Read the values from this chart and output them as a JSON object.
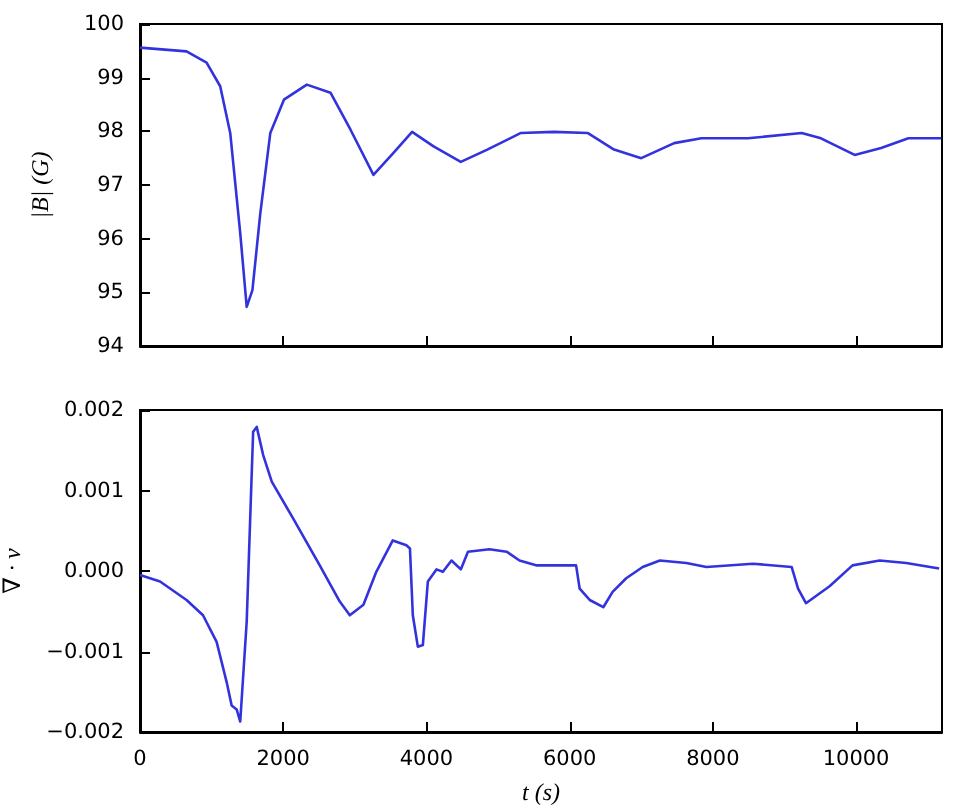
{
  "chart_data": [
    {
      "type": "line",
      "ylabel": "|B| (G)",
      "x": [
        0,
        650,
        930,
        1120,
        1260,
        1400,
        1490,
        1570,
        1680,
        1820,
        2010,
        2330,
        2660,
        2940,
        3260,
        3540,
        3800,
        4100,
        4480,
        4850,
        5320,
        5780,
        6250,
        6620,
        7000,
        7460,
        7840,
        8490,
        9240,
        9510,
        9980,
        10350,
        10730,
        11190
      ],
      "series": [
        {
          "color": "#3333dd",
          "values": [
            99.56,
            99.49,
            99.28,
            98.84,
            97.97,
            96.1,
            94.73,
            95.04,
            96.47,
            97.97,
            98.59,
            98.87,
            98.72,
            98.03,
            97.19,
            97.6,
            97.99,
            97.72,
            97.43,
            97.66,
            97.97,
            97.99,
            97.97,
            97.66,
            97.5,
            97.78,
            97.87,
            97.87,
            97.97,
            97.87,
            97.56,
            97.69,
            97.87,
            97.87
          ]
        }
      ],
      "xlim": [
        0,
        11200
      ],
      "xticks": [
        0,
        2000,
        4000,
        6000,
        8000,
        10000
      ],
      "ylim": [
        94,
        100
      ],
      "yticks": [
        94,
        95,
        96,
        97,
        98,
        99,
        100
      ],
      "tick_labels": "y",
      "grid": false,
      "marker": "none",
      "line_style": "solid"
    },
    {
      "type": "line",
      "xlabel": "t (s)",
      "ylabel": "∇ · v",
      "x": [
        0,
        280,
        650,
        880,
        1070,
        1210,
        1280,
        1350,
        1400,
        1490,
        1580,
        1630,
        1720,
        1840,
        2140,
        2510,
        2790,
        2930,
        3120,
        3300,
        3530,
        3720,
        3770,
        3810,
        3880,
        3950,
        4020,
        4140,
        4230,
        4350,
        4480,
        4580,
        4880,
        5120,
        5300,
        5530,
        6090,
        6140,
        6280,
        6470,
        6600,
        6790,
        7020,
        7260,
        7630,
        7910,
        8560,
        9100,
        9190,
        9300,
        9630,
        9950,
        10330,
        10700,
        11160
      ],
      "series": [
        {
          "color": "#3333dd",
          "values": [
            -5e-05,
            -0.00013,
            -0.00036,
            -0.00055,
            -0.00088,
            -0.00138,
            -0.00167,
            -0.00172,
            -0.00187,
            -0.00063,
            0.00173,
            0.00179,
            0.00144,
            0.00111,
            0.00065,
            7e-05,
            -0.00038,
            -0.00055,
            -0.00042,
            -1e-05,
            0.00038,
            0.00032,
            0.00028,
            -0.00055,
            -0.00094,
            -0.00092,
            -0.00013,
            2e-05,
            -1e-05,
            0.00013,
            2e-05,
            0.00024,
            0.00027,
            0.00024,
            0.00013,
            7e-05,
            7e-05,
            -0.00022,
            -0.00036,
            -0.00045,
            -0.00026,
            -9e-05,
            5e-05,
            0.00013,
            0.0001,
            5e-05,
            9e-05,
            5e-05,
            -0.00022,
            -0.0004,
            -0.00019,
            7e-05,
            0.00013,
            0.0001,
            3e-05
          ]
        }
      ],
      "xlim": [
        0,
        11200
      ],
      "xticks": [
        0,
        2000,
        4000,
        6000,
        8000,
        10000
      ],
      "ylim": [
        -0.002,
        0.002
      ],
      "yticks": [
        {
          "value": -0.002,
          "label": "−0.002"
        },
        {
          "value": -0.001,
          "label": "−0.001"
        },
        {
          "value": 0,
          "label": "0.000"
        },
        0.001,
        0.002
      ],
      "grid": false,
      "marker": "none",
      "line_style": "solid"
    }
  ]
}
